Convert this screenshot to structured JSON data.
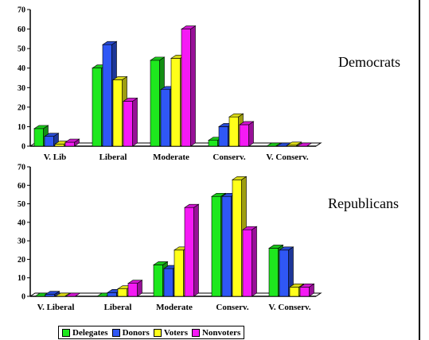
{
  "colors": {
    "Delegates": "#1ee81e",
    "Donors": "#2f57f5",
    "Voters": "#ffff1a",
    "Nonvoters": "#f51af5",
    "plot_background": "#ffffff",
    "axis": "#000000"
  },
  "legend": {
    "placement": "bottom",
    "items": [
      "Delegates",
      "Donors",
      "Voters",
      "Nonvoters"
    ]
  },
  "panels": {
    "democrats_label": "Democrats",
    "republicans_label": "Republicans"
  },
  "chart_data": [
    {
      "type": "bar",
      "style": "3d clustered column",
      "panel_label": "Democrats",
      "categories": [
        "V. Lib",
        "Liberal",
        "Moderate",
        "Conserv.",
        "V. Conserv."
      ],
      "ylim": [
        0,
        70
      ],
      "yticks": [
        0,
        10,
        20,
        30,
        40,
        50,
        60,
        70
      ],
      "grid": false,
      "series": [
        {
          "name": "Delegates",
          "values": [
            9,
            40,
            44,
            3,
            0
          ]
        },
        {
          "name": "Donors",
          "values": [
            5,
            52,
            29,
            10,
            0
          ]
        },
        {
          "name": "Voters",
          "values": [
            1,
            34,
            45,
            15,
            0.5
          ]
        },
        {
          "name": "Nonvoters",
          "values": [
            2,
            23,
            60,
            11,
            0
          ]
        }
      ]
    },
    {
      "type": "bar",
      "style": "3d clustered column",
      "panel_label": "Republicans",
      "categories": [
        "V. Liberal",
        "Liberal",
        "Moderate",
        "Conserv.",
        "V. Conserv."
      ],
      "ylim": [
        0,
        70
      ],
      "yticks": [
        0,
        10,
        20,
        30,
        40,
        50,
        60,
        70
      ],
      "grid": false,
      "series": [
        {
          "name": "Delegates",
          "values": [
            0,
            0,
            17,
            54,
            26
          ]
        },
        {
          "name": "Donors",
          "values": [
            1,
            2,
            15,
            54,
            25
          ]
        },
        {
          "name": "Voters",
          "values": [
            0,
            4,
            25,
            63,
            5
          ]
        },
        {
          "name": "Nonvoters",
          "values": [
            0,
            7,
            48,
            36,
            5
          ]
        }
      ]
    }
  ]
}
